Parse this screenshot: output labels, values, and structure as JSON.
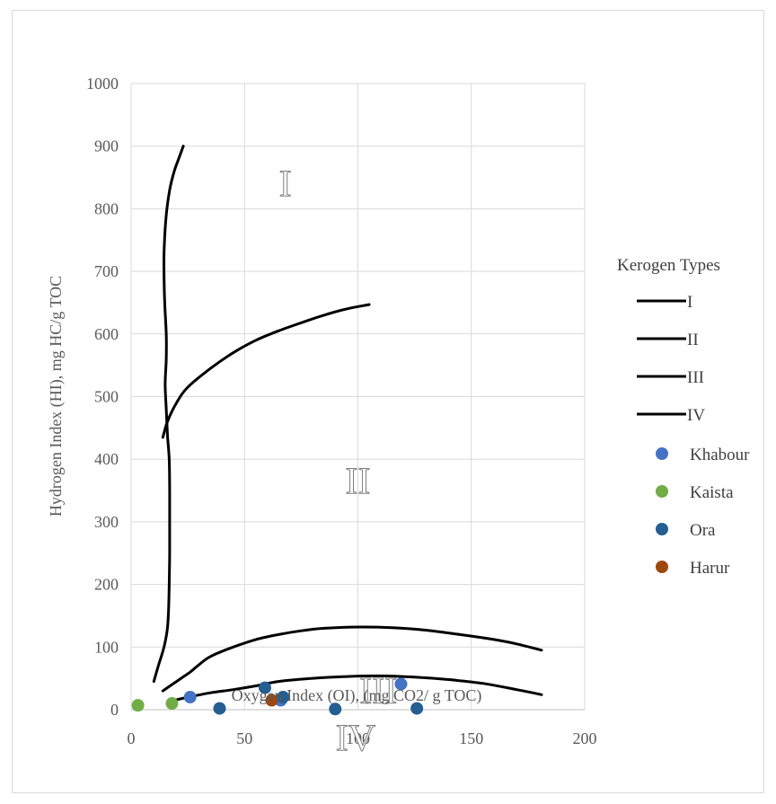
{
  "chart_data": {
    "type": "scatter",
    "title": "",
    "xlabel": "Oxygen Index (OI), (mg CO2/ g TOC)",
    "ylabel": "Hydrogen Index (HI), mg HC/g TOC",
    "xlim": [
      0,
      200
    ],
    "ylim": [
      0,
      1000
    ],
    "x_ticks": [
      "0",
      "50",
      "100",
      "150",
      "200"
    ],
    "y_ticks": [
      "0",
      "100",
      "200",
      "300",
      "400",
      "500",
      "600",
      "700",
      "800",
      "900",
      "1000"
    ],
    "grid": true,
    "legend_title": "Kerogen Types",
    "legend_position": "right",
    "region_labels": [
      {
        "text": "I",
        "x": 68,
        "y": 840
      },
      {
        "text": "II",
        "x": 100,
        "y": 365
      },
      {
        "text": "III",
        "x": 109,
        "y": 30
      },
      {
        "text": "IV",
        "x": 99,
        "y": -45
      }
    ],
    "lines": [
      {
        "name": "I",
        "color": "#000000",
        "points": [
          [
            23,
            900
          ],
          [
            21,
            880
          ],
          [
            19,
            860
          ],
          [
            17,
            830
          ],
          [
            15.5,
            790
          ],
          [
            14.6,
            740
          ],
          [
            14.5,
            700
          ],
          [
            14.8,
            650
          ],
          [
            15.5,
            600
          ],
          [
            15.5,
            560
          ],
          [
            15,
            520
          ],
          [
            15.5,
            480
          ],
          [
            16,
            440
          ],
          [
            16.8,
            400
          ],
          [
            17,
            350
          ],
          [
            17,
            300
          ],
          [
            17,
            250
          ],
          [
            16.8,
            200
          ],
          [
            16.5,
            160
          ],
          [
            16,
            130
          ],
          [
            14.5,
            100
          ],
          [
            12,
            70
          ],
          [
            10,
            45
          ]
        ]
      },
      {
        "name": "II",
        "color": "#000000",
        "points": [
          [
            14,
            435
          ],
          [
            16,
            460
          ],
          [
            20,
            490
          ],
          [
            25,
            515
          ],
          [
            35,
            545
          ],
          [
            45,
            570
          ],
          [
            55,
            590
          ],
          [
            65,
            605
          ],
          [
            75,
            618
          ],
          [
            85,
            630
          ],
          [
            95,
            640
          ],
          [
            105,
            647
          ]
        ]
      },
      {
        "name": "III",
        "color": "#000000",
        "points": [
          [
            14,
            30
          ],
          [
            18,
            40
          ],
          [
            22,
            50
          ],
          [
            26,
            60
          ],
          [
            30,
            72
          ],
          [
            35,
            85
          ],
          [
            45,
            100
          ],
          [
            55,
            112
          ],
          [
            65,
            120
          ],
          [
            75,
            126
          ],
          [
            85,
            130
          ],
          [
            100,
            132
          ],
          [
            115,
            131
          ],
          [
            130,
            127
          ],
          [
            145,
            120
          ],
          [
            160,
            112
          ],
          [
            170,
            105
          ],
          [
            181,
            95
          ]
        ]
      },
      {
        "name": "IV",
        "color": "#000000",
        "points": [
          [
            19,
            15
          ],
          [
            25,
            20
          ],
          [
            35,
            27
          ],
          [
            45,
            32
          ],
          [
            55,
            38
          ],
          [
            65,
            45
          ],
          [
            80,
            50
          ],
          [
            95,
            53
          ],
          [
            110,
            54
          ],
          [
            125,
            52
          ],
          [
            140,
            48
          ],
          [
            155,
            42
          ],
          [
            170,
            32
          ],
          [
            181,
            24
          ]
        ]
      }
    ],
    "series": [
      {
        "name": "Khabour",
        "color": "#4472c4",
        "points": [
          [
            26,
            20
          ],
          [
            66,
            15
          ],
          [
            119,
            41
          ]
        ]
      },
      {
        "name": "Kaista",
        "color": "#70ad47",
        "points": [
          [
            3,
            7
          ],
          [
            18,
            10
          ]
        ]
      },
      {
        "name": "Ora",
        "color": "#255e91",
        "points": [
          [
            39,
            2
          ],
          [
            59,
            35
          ],
          [
            67,
            20
          ],
          [
            90,
            1
          ],
          [
            126,
            2
          ]
        ]
      },
      {
        "name": "Harur",
        "color": "#9e480e",
        "points": [
          [
            62,
            15
          ]
        ]
      }
    ]
  }
}
